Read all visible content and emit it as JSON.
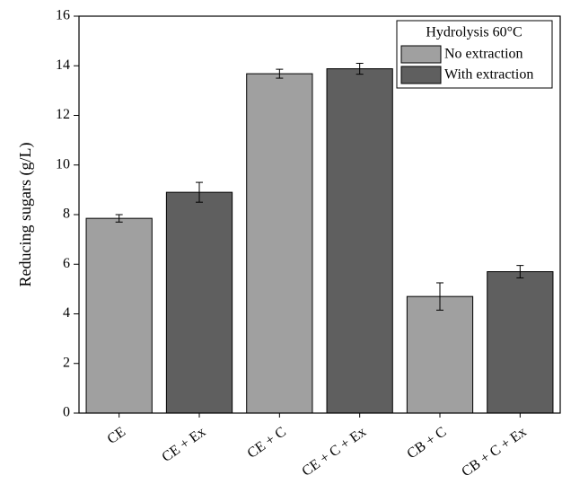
{
  "chart_data": {
    "type": "bar",
    "y_label": "Reducing sugars (g/L)",
    "legend_title": "Hydrolysis 60°C",
    "legend_position": "upper right",
    "categories": [
      "CE",
      "CE + Ex",
      "CE + C",
      "CE + C + Ex",
      "CB + C",
      "CB + C + Ex"
    ],
    "series": [
      {
        "name": "No extraction",
        "color": "#a0a0a0",
        "values": [
          7.85,
          null,
          13.68,
          null,
          4.7,
          null
        ],
        "errors": [
          0.15,
          null,
          0.18,
          null,
          0.55,
          null
        ]
      },
      {
        "name": "With extraction",
        "color": "#5f5f5f",
        "values": [
          null,
          8.9,
          null,
          13.88,
          null,
          5.7
        ],
        "errors": [
          null,
          0.4,
          null,
          0.22,
          null,
          0.25
        ]
      }
    ],
    "ylim": [
      0,
      16
    ],
    "yticks": [
      0,
      2,
      4,
      6,
      8,
      10,
      12,
      14,
      16
    ]
  }
}
